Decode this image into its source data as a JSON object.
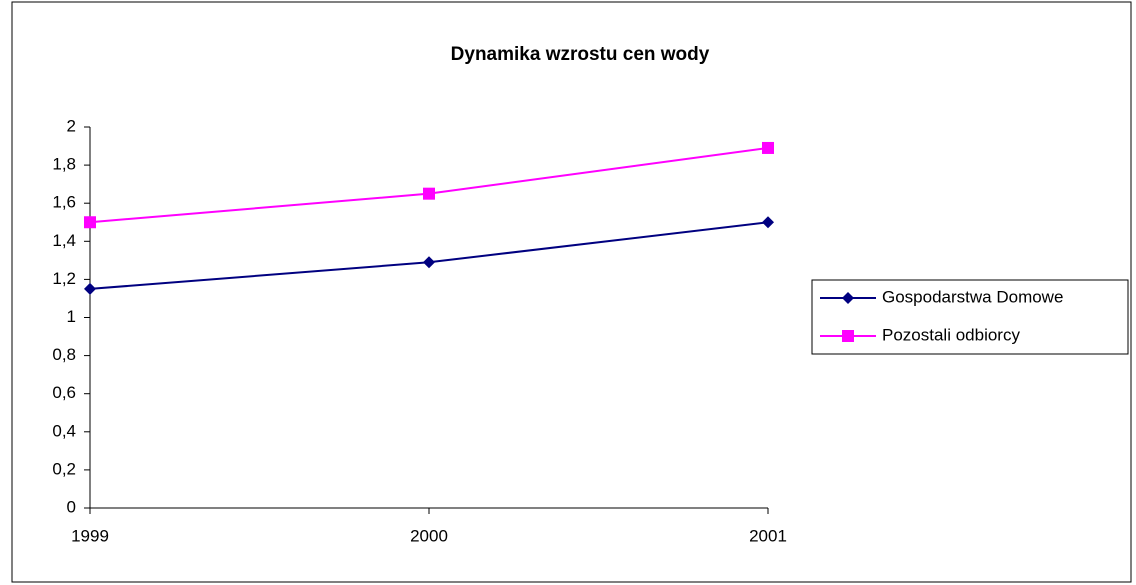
{
  "chart_data": {
    "type": "line",
    "title": "Dynamika wzrostu cen wody",
    "categories": [
      "1999",
      "2000",
      "2001"
    ],
    "series": [
      {
        "name": "Gospodarstwa Domowe",
        "color": "#000080",
        "marker": "diamond",
        "values": [
          1.15,
          1.29,
          1.5
        ]
      },
      {
        "name": "Pozostali odbiorcy",
        "color": "#ff00ff",
        "marker": "square",
        "values": [
          1.5,
          1.65,
          1.89
        ]
      }
    ],
    "ylim": [
      0,
      2
    ],
    "yticks": [
      0,
      {
        "value": 0.2,
        "label": "0,2"
      },
      {
        "value": 0.4,
        "label": "0,4"
      },
      {
        "value": 0.6,
        "label": "0,6"
      },
      {
        "value": 0.8,
        "label": "0,8"
      },
      1,
      {
        "value": 1.2,
        "label": "1,2"
      },
      {
        "value": 1.4,
        "label": "1,4"
      },
      {
        "value": 1.6,
        "label": "1,6"
      },
      {
        "value": 1.8,
        "label": "1,8"
      },
      2
    ],
    "grid": false,
    "legend": "right"
  }
}
